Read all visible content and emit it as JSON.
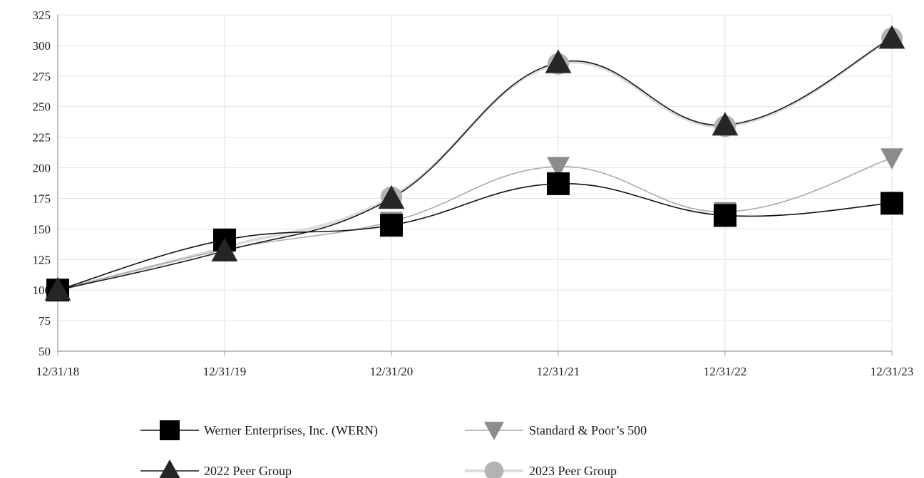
{
  "chart_data": {
    "type": "line",
    "title": "",
    "xlabel": "",
    "ylabel": "",
    "categories": [
      "12/31/18",
      "12/31/19",
      "12/31/20",
      "12/31/21",
      "12/31/22",
      "12/31/23"
    ],
    "ylim": [
      50,
      325
    ],
    "yticks": [
      50,
      75,
      100,
      125,
      150,
      175,
      200,
      225,
      250,
      275,
      300,
      325
    ],
    "grid": "vertical lines at each category",
    "smooth_lines": true,
    "legend_position": "bottom",
    "series": [
      {
        "name": "Werner Enterprises, Inc. (WERN)",
        "values": [
          100,
          141,
          153,
          187,
          161,
          171
        ],
        "line_color": "#111111",
        "marker": "square",
        "marker_color": "#000000"
      },
      {
        "name": "Standard & Poor’s 500",
        "values": [
          100,
          133,
          156,
          201,
          164,
          208
        ],
        "line_color": "#aaaaaa",
        "marker": "triangle-down",
        "marker_color": "#8c8c8c"
      },
      {
        "name": "2022 Peer Group",
        "values": [
          100,
          132,
          175,
          286,
          235,
          306
        ],
        "line_color": "#1a1a1a",
        "marker": "triangle-up",
        "marker_color": "#262626"
      },
      {
        "name": "2023 Peer Group",
        "values": [
          100,
          135,
          176,
          285,
          234,
          306
        ],
        "line_color": "#dcdcdc",
        "marker": "circle",
        "marker_color": "#b3b3b3"
      }
    ]
  }
}
